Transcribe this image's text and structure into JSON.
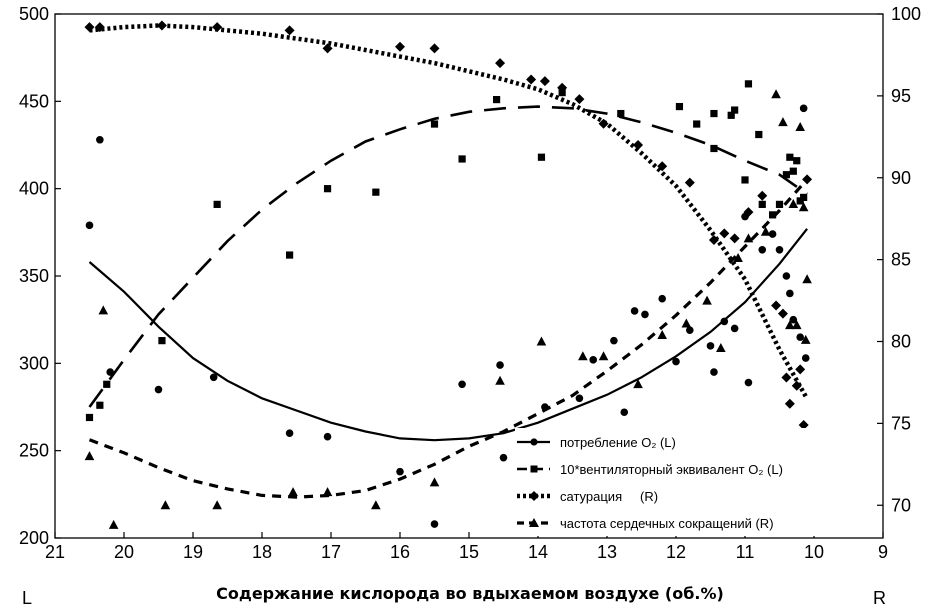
{
  "chart_data": {
    "type": "scatter",
    "title": "",
    "xlabel": "Содержание кислорода во вдыхаемом воздухе (об.%)",
    "left_axis_letter": "L",
    "right_axis_letter": "R",
    "xlim": [
      21,
      9
    ],
    "x_ticks": [
      "21",
      "20",
      "19",
      "18",
      "17",
      "16",
      "15",
      "14",
      "13",
      "12",
      "11",
      "10",
      "9"
    ],
    "ylim_left": [
      200,
      500
    ],
    "y_left_ticks": [
      "500",
      "450",
      "400",
      "350",
      "300",
      "250",
      "200"
    ],
    "ylim_right": [
      68,
      100
    ],
    "y_right_ticks": [
      "100",
      "95",
      "90",
      "85",
      "80",
      "75",
      "70"
    ],
    "grid": false,
    "legend_position": "bottom-right",
    "series": [
      {
        "name": "потребление O₂ (L)",
        "axis": "left",
        "marker": "circle",
        "line": "solid",
        "points": [
          [
            20.5,
            379
          ],
          [
            20.35,
            428
          ],
          [
            20.2,
            295
          ],
          [
            19.5,
            285
          ],
          [
            18.7,
            292
          ],
          [
            17.6,
            260
          ],
          [
            17.05,
            258
          ],
          [
            16.0,
            238
          ],
          [
            15.5,
            208
          ],
          [
            15.1,
            288
          ],
          [
            14.55,
            299
          ],
          [
            14.5,
            246
          ],
          [
            13.9,
            275
          ],
          [
            13.75,
            253
          ],
          [
            13.4,
            280
          ],
          [
            13.2,
            302
          ],
          [
            12.9,
            313
          ],
          [
            12.75,
            272
          ],
          [
            12.6,
            330
          ],
          [
            12.45,
            328
          ],
          [
            12.2,
            337
          ],
          [
            12.0,
            301
          ],
          [
            11.8,
            319
          ],
          [
            11.5,
            310
          ],
          [
            11.45,
            295
          ],
          [
            11.3,
            324
          ],
          [
            11.15,
            320
          ],
          [
            11.0,
            384
          ],
          [
            10.95,
            289
          ],
          [
            10.75,
            365
          ],
          [
            10.6,
            374
          ],
          [
            10.5,
            365
          ],
          [
            10.4,
            350
          ],
          [
            10.35,
            340
          ],
          [
            10.3,
            325
          ],
          [
            10.2,
            315
          ],
          [
            10.15,
            446
          ],
          [
            10.12,
            303
          ]
        ],
        "fit": [
          [
            20.5,
            358
          ],
          [
            20.0,
            341
          ],
          [
            19.5,
            321
          ],
          [
            19.0,
            303
          ],
          [
            18.5,
            290
          ],
          [
            18.0,
            280
          ],
          [
            17.5,
            273
          ],
          [
            17.0,
            266
          ],
          [
            16.5,
            261
          ],
          [
            16.0,
            257
          ],
          [
            15.5,
            256
          ],
          [
            15.0,
            257
          ],
          [
            14.5,
            260
          ],
          [
            14.0,
            266
          ],
          [
            13.5,
            274
          ],
          [
            13.0,
            282
          ],
          [
            12.5,
            292
          ],
          [
            12.0,
            304
          ],
          [
            11.5,
            318
          ],
          [
            11.0,
            335
          ],
          [
            10.5,
            357
          ],
          [
            10.1,
            377
          ]
        ]
      },
      {
        "name": "10*вентиляторный эквивалент O₂ (L)",
        "axis": "left",
        "marker": "square",
        "line": "long-dash",
        "points": [
          [
            20.5,
            269
          ],
          [
            20.35,
            276
          ],
          [
            20.25,
            288
          ],
          [
            19.45,
            313
          ],
          [
            18.65,
            391
          ],
          [
            17.6,
            362
          ],
          [
            17.05,
            400
          ],
          [
            16.35,
            398
          ],
          [
            15.5,
            437
          ],
          [
            15.1,
            417
          ],
          [
            14.6,
            451
          ],
          [
            13.95,
            418
          ],
          [
            13.65,
            455
          ],
          [
            12.8,
            443
          ],
          [
            11.95,
            447
          ],
          [
            11.7,
            437
          ],
          [
            11.45,
            443
          ],
          [
            11.45,
            423
          ],
          [
            11.2,
            442
          ],
          [
            11.15,
            445
          ],
          [
            11.0,
            405
          ],
          [
            10.95,
            460
          ],
          [
            10.8,
            431
          ],
          [
            10.75,
            391
          ],
          [
            10.6,
            385
          ],
          [
            10.5,
            391
          ],
          [
            10.4,
            408
          ],
          [
            10.35,
            418
          ],
          [
            10.3,
            410
          ],
          [
            10.25,
            416
          ],
          [
            10.2,
            393
          ],
          [
            10.15,
            395
          ]
        ],
        "fit": [
          [
            20.5,
            275
          ],
          [
            20.0,
            302
          ],
          [
            19.5,
            328
          ],
          [
            19.0,
            349
          ],
          [
            18.5,
            370
          ],
          [
            18.0,
            388
          ],
          [
            17.5,
            403
          ],
          [
            17.0,
            416
          ],
          [
            16.5,
            427
          ],
          [
            16.0,
            434
          ],
          [
            15.5,
            440
          ],
          [
            15.0,
            444
          ],
          [
            14.5,
            446
          ],
          [
            14.0,
            447
          ],
          [
            13.5,
            446
          ],
          [
            13.0,
            443
          ],
          [
            12.5,
            438
          ],
          [
            12.0,
            432
          ],
          [
            11.5,
            425
          ],
          [
            11.0,
            416
          ],
          [
            10.5,
            408
          ],
          [
            10.1,
            397
          ]
        ]
      },
      {
        "name": "сатурация",
        "label_suffix": "(R)",
        "axis": "right",
        "marker": "diamond",
        "line": "dotted",
        "points": [
          [
            20.5,
            99.2
          ],
          [
            20.35,
            99.2
          ],
          [
            19.45,
            99.3
          ],
          [
            18.65,
            99.2
          ],
          [
            17.6,
            99.0
          ],
          [
            17.05,
            97.9
          ],
          [
            16.0,
            98.0
          ],
          [
            15.5,
            97.9
          ],
          [
            14.55,
            97.0
          ],
          [
            14.1,
            96.0
          ],
          [
            13.9,
            95.9
          ],
          [
            13.65,
            95.5
          ],
          [
            13.4,
            94.8
          ],
          [
            13.05,
            93.3
          ],
          [
            12.55,
            92.0
          ],
          [
            12.2,
            90.7
          ],
          [
            11.8,
            89.7
          ],
          [
            11.45,
            86.2
          ],
          [
            11.3,
            86.6
          ],
          [
            11.15,
            86.3
          ],
          [
            10.95,
            87.9
          ],
          [
            10.75,
            88.9
          ],
          [
            10.55,
            82.2
          ],
          [
            10.45,
            81.7
          ],
          [
            10.4,
            77.8
          ],
          [
            10.35,
            76.2
          ],
          [
            10.25,
            77.3
          ],
          [
            10.2,
            78.3
          ],
          [
            10.15,
            74.9
          ],
          [
            10.1,
            89.9
          ]
        ],
        "fit": [
          [
            20.5,
            99.0
          ],
          [
            20.0,
            99.2
          ],
          [
            19.5,
            99.3
          ],
          [
            19.0,
            99.2
          ],
          [
            18.5,
            99.0
          ],
          [
            18.0,
            98.8
          ],
          [
            17.5,
            98.5
          ],
          [
            17.0,
            98.2
          ],
          [
            16.5,
            97.8
          ],
          [
            16.0,
            97.4
          ],
          [
            15.5,
            97.0
          ],
          [
            15.0,
            96.5
          ],
          [
            14.5,
            96.0
          ],
          [
            14.0,
            95.4
          ],
          [
            13.5,
            94.5
          ],
          [
            13.0,
            93.3
          ],
          [
            12.5,
            91.5
          ],
          [
            12.0,
            89.5
          ],
          [
            11.5,
            86.8
          ],
          [
            11.0,
            83.8
          ],
          [
            10.5,
            79.5
          ],
          [
            10.1,
            76.5
          ]
        ]
      },
      {
        "name": "частота сердечных сокращений (R)",
        "axis": "right",
        "marker": "triangle",
        "line": "short-dash",
        "points": [
          [
            20.5,
            73.0
          ],
          [
            20.3,
            81.9
          ],
          [
            20.15,
            68.8
          ],
          [
            19.4,
            70.0
          ],
          [
            18.65,
            70.0
          ],
          [
            17.55,
            70.8
          ],
          [
            17.05,
            70.8
          ],
          [
            16.35,
            70.0
          ],
          [
            15.5,
            71.4
          ],
          [
            14.55,
            77.6
          ],
          [
            13.95,
            80.0
          ],
          [
            13.35,
            79.1
          ],
          [
            13.05,
            79.1
          ],
          [
            12.55,
            77.4
          ],
          [
            12.2,
            80.4
          ],
          [
            11.85,
            81.1
          ],
          [
            11.55,
            82.5
          ],
          [
            11.35,
            79.6
          ],
          [
            11.1,
            85.1
          ],
          [
            10.95,
            86.3
          ],
          [
            10.7,
            86.7
          ],
          [
            10.55,
            95.1
          ],
          [
            10.45,
            93.4
          ],
          [
            10.35,
            81.0
          ],
          [
            10.3,
            88.4
          ],
          [
            10.25,
            81.0
          ],
          [
            10.2,
            93.1
          ],
          [
            10.15,
            88.2
          ],
          [
            10.12,
            80.1
          ],
          [
            10.1,
            83.8
          ]
        ],
        "fit": [
          [
            20.5,
            74.0
          ],
          [
            20.0,
            73.2
          ],
          [
            19.5,
            72.3
          ],
          [
            19.0,
            71.5
          ],
          [
            18.5,
            71.0
          ],
          [
            18.0,
            70.6
          ],
          [
            17.5,
            70.5
          ],
          [
            17.0,
            70.6
          ],
          [
            16.5,
            70.9
          ],
          [
            16.0,
            71.6
          ],
          [
            15.5,
            72.5
          ],
          [
            15.0,
            73.6
          ],
          [
            14.5,
            74.5
          ],
          [
            14.0,
            75.6
          ],
          [
            13.5,
            76.7
          ],
          [
            13.0,
            78.2
          ],
          [
            12.5,
            79.8
          ],
          [
            12.0,
            81.6
          ],
          [
            11.5,
            83.6
          ],
          [
            11.0,
            85.8
          ],
          [
            10.5,
            88.0
          ],
          [
            10.1,
            89.9
          ]
        ]
      }
    ]
  }
}
